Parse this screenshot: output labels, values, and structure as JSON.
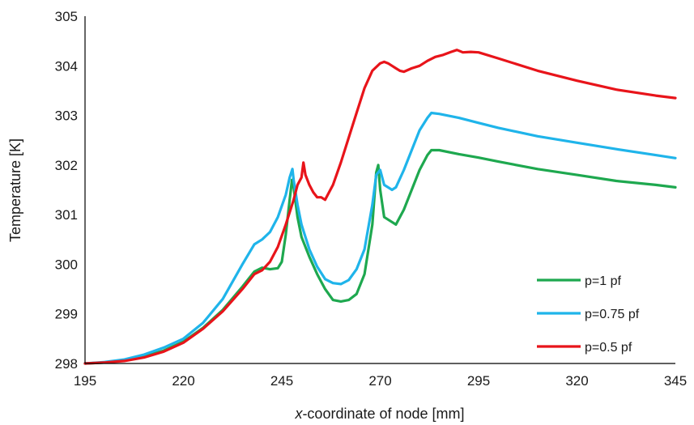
{
  "chart_data": {
    "type": "line",
    "xlabel_prefix": "x",
    "xlabel_rest": "-coordinate of node [mm]",
    "ylabel": "Temperature [K]",
    "xlim": [
      195,
      345
    ],
    "ylim": [
      298,
      305
    ],
    "xticks": [
      195,
      220,
      245,
      270,
      295,
      320,
      345
    ],
    "yticks": [
      298,
      299,
      300,
      301,
      302,
      303,
      304,
      305
    ],
    "grid": false,
    "legend_position": "bottom-right",
    "series": [
      {
        "name": "p=1 pf",
        "color": "#1ea84f",
        "points": [
          [
            195,
            298.0
          ],
          [
            200,
            298.02
          ],
          [
            205,
            298.06
          ],
          [
            210,
            298.14
          ],
          [
            215,
            298.26
          ],
          [
            220,
            298.44
          ],
          [
            225,
            298.72
          ],
          [
            230,
            299.08
          ],
          [
            235,
            299.55
          ],
          [
            238,
            299.85
          ],
          [
            240,
            299.93
          ],
          [
            242,
            299.9
          ],
          [
            244,
            299.92
          ],
          [
            245,
            300.05
          ],
          [
            246,
            300.6
          ],
          [
            247,
            301.3
          ],
          [
            247.6,
            301.7
          ],
          [
            248,
            301.55
          ],
          [
            249,
            300.95
          ],
          [
            250,
            300.55
          ],
          [
            252,
            300.15
          ],
          [
            254,
            299.8
          ],
          [
            256,
            299.5
          ],
          [
            258,
            299.28
          ],
          [
            260,
            299.25
          ],
          [
            262,
            299.28
          ],
          [
            264,
            299.4
          ],
          [
            266,
            299.8
          ],
          [
            268,
            300.8
          ],
          [
            269,
            301.85
          ],
          [
            269.5,
            302.0
          ],
          [
            270,
            301.5
          ],
          [
            271,
            300.95
          ],
          [
            273,
            300.85
          ],
          [
            274,
            300.8
          ],
          [
            276,
            301.1
          ],
          [
            278,
            301.5
          ],
          [
            280,
            301.9
          ],
          [
            282,
            302.2
          ],
          [
            283,
            302.3
          ],
          [
            285,
            302.3
          ],
          [
            290,
            302.22
          ],
          [
            295,
            302.15
          ],
          [
            300,
            302.07
          ],
          [
            310,
            301.92
          ],
          [
            320,
            301.8
          ],
          [
            330,
            301.68
          ],
          [
            340,
            301.6
          ],
          [
            345,
            301.55
          ]
        ]
      },
      {
        "name": "p=0.75 pf",
        "color": "#1fb4ea",
        "points": [
          [
            195,
            298.0
          ],
          [
            200,
            298.03
          ],
          [
            205,
            298.08
          ],
          [
            210,
            298.18
          ],
          [
            215,
            298.32
          ],
          [
            220,
            298.5
          ],
          [
            225,
            298.82
          ],
          [
            230,
            299.3
          ],
          [
            235,
            300.0
          ],
          [
            238,
            300.4
          ],
          [
            240,
            300.5
          ],
          [
            242,
            300.65
          ],
          [
            244,
            300.95
          ],
          [
            246,
            301.4
          ],
          [
            247,
            301.75
          ],
          [
            247.7,
            301.92
          ],
          [
            248,
            301.7
          ],
          [
            249,
            301.2
          ],
          [
            250,
            300.8
          ],
          [
            252,
            300.3
          ],
          [
            254,
            299.95
          ],
          [
            256,
            299.7
          ],
          [
            258,
            299.62
          ],
          [
            260,
            299.6
          ],
          [
            262,
            299.68
          ],
          [
            264,
            299.9
          ],
          [
            266,
            300.3
          ],
          [
            268,
            301.2
          ],
          [
            269,
            301.8
          ],
          [
            270,
            301.9
          ],
          [
            271,
            301.6
          ],
          [
            272,
            301.55
          ],
          [
            273,
            301.5
          ],
          [
            274,
            301.55
          ],
          [
            276,
            301.9
          ],
          [
            278,
            302.3
          ],
          [
            280,
            302.7
          ],
          [
            282,
            302.95
          ],
          [
            283,
            303.05
          ],
          [
            285,
            303.03
          ],
          [
            290,
            302.95
          ],
          [
            295,
            302.85
          ],
          [
            300,
            302.75
          ],
          [
            310,
            302.58
          ],
          [
            320,
            302.45
          ],
          [
            330,
            302.32
          ],
          [
            340,
            302.2
          ],
          [
            345,
            302.14
          ]
        ]
      },
      {
        "name": "p=0.5 pf",
        "color": "#e8141a",
        "points": [
          [
            195,
            298.0
          ],
          [
            200,
            298.02
          ],
          [
            205,
            298.05
          ],
          [
            210,
            298.12
          ],
          [
            215,
            298.24
          ],
          [
            220,
            298.42
          ],
          [
            225,
            298.7
          ],
          [
            230,
            299.05
          ],
          [
            235,
            299.5
          ],
          [
            238,
            299.8
          ],
          [
            240,
            299.88
          ],
          [
            242,
            300.05
          ],
          [
            244,
            300.35
          ],
          [
            246,
            300.8
          ],
          [
            248,
            301.3
          ],
          [
            249,
            301.6
          ],
          [
            250,
            301.75
          ],
          [
            250.5,
            302.05
          ],
          [
            251,
            301.8
          ],
          [
            252,
            301.6
          ],
          [
            253,
            301.45
          ],
          [
            254,
            301.35
          ],
          [
            255,
            301.35
          ],
          [
            256,
            301.3
          ],
          [
            257,
            301.45
          ],
          [
            258,
            301.6
          ],
          [
            260,
            302.05
          ],
          [
            262,
            302.55
          ],
          [
            264,
            303.05
          ],
          [
            266,
            303.55
          ],
          [
            268,
            303.9
          ],
          [
            270,
            304.05
          ],
          [
            271,
            304.08
          ],
          [
            272,
            304.05
          ],
          [
            273,
            304.0
          ],
          [
            274,
            303.95
          ],
          [
            275,
            303.9
          ],
          [
            276,
            303.88
          ],
          [
            278,
            303.95
          ],
          [
            280,
            304.0
          ],
          [
            282,
            304.1
          ],
          [
            284,
            304.18
          ],
          [
            286,
            304.22
          ],
          [
            288,
            304.28
          ],
          [
            289.5,
            304.32
          ],
          [
            291,
            304.27
          ],
          [
            293,
            304.28
          ],
          [
            295,
            304.27
          ],
          [
            300,
            304.15
          ],
          [
            310,
            303.9
          ],
          [
            320,
            303.7
          ],
          [
            330,
            303.52
          ],
          [
            340,
            303.4
          ],
          [
            345,
            303.35
          ]
        ]
      }
    ]
  }
}
